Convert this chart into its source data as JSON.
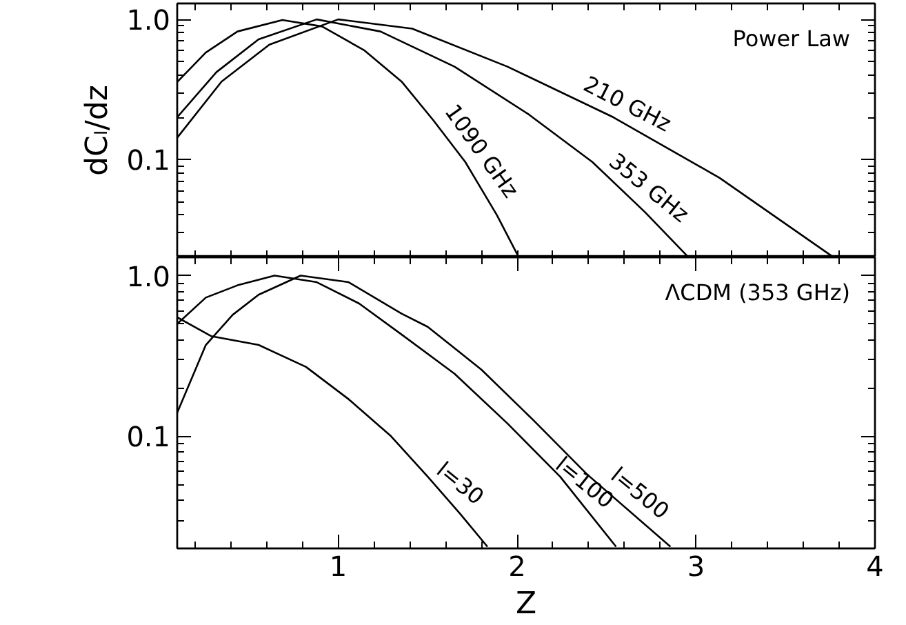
{
  "chart_data": [
    {
      "type": "line",
      "ylabel": "dCₗ/dz",
      "log": "y",
      "tick_labels": "y",
      "xlim": [
        0.1,
        4
      ],
      "ylim": [
        0.02,
        1.3
      ],
      "xticks": [
        {
          "value": 0.2,
          "label": null
        },
        {
          "value": 0.4,
          "label": null
        },
        {
          "value": 0.6,
          "label": null
        },
        {
          "value": 0.8,
          "label": null
        },
        {
          "value": 1,
          "label": null
        },
        {
          "value": 1.2,
          "label": null
        },
        {
          "value": 1.4,
          "label": null
        },
        {
          "value": 1.6,
          "label": null
        },
        {
          "value": 1.8,
          "label": null
        },
        {
          "value": 2,
          "label": null
        },
        {
          "value": 2.2,
          "label": null
        },
        {
          "value": 2.4,
          "label": null
        },
        {
          "value": 2.6,
          "label": null
        },
        {
          "value": 2.8,
          "label": null
        },
        {
          "value": 3,
          "label": null
        },
        {
          "value": 3.2,
          "label": null
        },
        {
          "value": 3.4,
          "label": null
        },
        {
          "value": 3.6,
          "label": null
        },
        {
          "value": 3.8,
          "label": null
        }
      ],
      "yticks": [
        {
          "value": 0.02,
          "label": null
        },
        {
          "value": 0.03,
          "label": null
        },
        {
          "value": 0.04,
          "label": null
        },
        {
          "value": 0.05,
          "label": null
        },
        {
          "value": 0.06,
          "label": null
        },
        {
          "value": 0.07,
          "label": null
        },
        {
          "value": 0.08,
          "label": null
        },
        {
          "value": 0.09,
          "label": null
        },
        0.1,
        {
          "value": 0.2,
          "label": null
        },
        {
          "value": 0.3,
          "label": null
        },
        {
          "value": 0.4,
          "label": null
        },
        {
          "value": 0.5,
          "label": null
        },
        {
          "value": 0.6,
          "label": null
        },
        {
          "value": 0.7,
          "label": null
        },
        {
          "value": 0.8,
          "label": null
        },
        {
          "value": 0.9,
          "label": null
        },
        {
          "value": 1,
          "label": "1.0"
        }
      ],
      "series": [
        {
          "color": "#000000",
          "x": [
            0.1,
            0.26,
            0.437,
            0.688,
            0.91,
            1.147,
            1.354,
            1.532,
            1.71,
            1.887,
            2.005
          ],
          "values": [
            0.357,
            0.58,
            0.82,
            0.99,
            0.89,
            0.6,
            0.36,
            0.19,
            0.096,
            0.04,
            0.0205
          ]
        },
        {
          "color": "#000000",
          "x": [
            0.1,
            0.319,
            0.555,
            0.88,
            1.236,
            1.65,
            2.064,
            2.42,
            2.715,
            2.95
          ],
          "values": [
            0.2,
            0.42,
            0.72,
            1.0,
            0.82,
            0.46,
            0.21,
            0.096,
            0.042,
            0.0205
          ]
        },
        {
          "color": "#000000",
          "x": [
            0.1,
            0.348,
            0.615,
            1.0,
            1.413,
            1.946,
            2.538,
            3.13,
            3.757
          ],
          "values": [
            0.143,
            0.36,
            0.66,
            1.0,
            0.86,
            0.46,
            0.2,
            0.074,
            0.0205
          ]
        }
      ],
      "annotations": [
        "Power Law",
        {
          "text": "1090 GHz",
          "x": 1.71,
          "y": 0.096
        },
        {
          "text": "353 GHz",
          "x": 2.66,
          "y": 0.049
        },
        {
          "text": "210 GHz",
          "x": 2.57,
          "y": 0.19
        }
      ]
    },
    {
      "type": "line",
      "xlabel": "Z",
      "log": "y",
      "xlim": [
        0.1,
        4
      ],
      "ylim": [
        0.02,
        1.3
      ],
      "xticks": [
        {
          "value": 0.2,
          "label": null
        },
        {
          "value": 0.4,
          "label": null
        },
        {
          "value": 0.6,
          "label": null
        },
        {
          "value": 0.8,
          "label": null
        },
        1,
        {
          "value": 1.2,
          "label": null
        },
        {
          "value": 1.4,
          "label": null
        },
        {
          "value": 1.6,
          "label": null
        },
        {
          "value": 1.8,
          "label": null
        },
        2,
        {
          "value": 2.2,
          "label": null
        },
        {
          "value": 2.4,
          "label": null
        },
        {
          "value": 2.6,
          "label": null
        },
        {
          "value": 2.8,
          "label": null
        },
        3,
        {
          "value": 3.2,
          "label": null
        },
        {
          "value": 3.4,
          "label": null
        },
        {
          "value": 3.6,
          "label": null
        },
        {
          "value": 3.8,
          "label": null
        },
        4
      ],
      "yticks": [
        {
          "value": 0.02,
          "label": null
        },
        {
          "value": 0.03,
          "label": null
        },
        {
          "value": 0.04,
          "label": null
        },
        {
          "value": 0.05,
          "label": null
        },
        {
          "value": 0.06,
          "label": null
        },
        {
          "value": 0.07,
          "label": null
        },
        {
          "value": 0.08,
          "label": null
        },
        {
          "value": 0.09,
          "label": null
        },
        0.1,
        {
          "value": 0.2,
          "label": null
        },
        {
          "value": 0.3,
          "label": null
        },
        {
          "value": 0.4,
          "label": null
        },
        {
          "value": 0.5,
          "label": null
        },
        {
          "value": 0.6,
          "label": null
        },
        {
          "value": 0.7,
          "label": null
        },
        {
          "value": 0.8,
          "label": null
        },
        {
          "value": 0.9,
          "label": null
        },
        {
          "value": 1,
          "label": "1.0"
        }
      ],
      "series": [
        {
          "color": "#000000",
          "x": [
            0.1,
            0.289,
            0.555,
            0.82,
            1.058,
            1.295,
            1.5,
            1.68,
            1.834
          ],
          "values": [
            0.55,
            0.42,
            0.37,
            0.27,
            0.17,
            0.1,
            0.056,
            0.033,
            0.0205
          ]
        },
        {
          "color": "#000000",
          "x": [
            0.1,
            0.26,
            0.437,
            0.644,
            0.88,
            1.117,
            1.354,
            1.65,
            1.946,
            2.24,
            2.553
          ],
          "values": [
            0.5,
            0.73,
            0.87,
            1.0,
            0.91,
            0.67,
            0.43,
            0.245,
            0.12,
            0.056,
            0.0205
          ]
        },
        {
          "color": "#000000",
          "x": [
            0.1,
            0.26,
            0.41,
            0.555,
            0.79,
            1.058,
            1.354,
            1.5,
            1.8,
            2.09,
            2.39,
            2.857
          ],
          "values": [
            0.14,
            0.37,
            0.57,
            0.76,
            1.0,
            0.91,
            0.58,
            0.48,
            0.26,
            0.126,
            0.058,
            0.0205
          ]
        }
      ],
      "annotations": [
        "ΛCDM (353 GHz)",
        {
          "text": "l=30",
          "x": 1.605,
          "y": 0.041
        },
        {
          "text": "l=100",
          "x": 2.316,
          "y": 0.044
        },
        {
          "text": "l=500",
          "x": 2.61,
          "y": 0.0356
        }
      ]
    }
  ]
}
